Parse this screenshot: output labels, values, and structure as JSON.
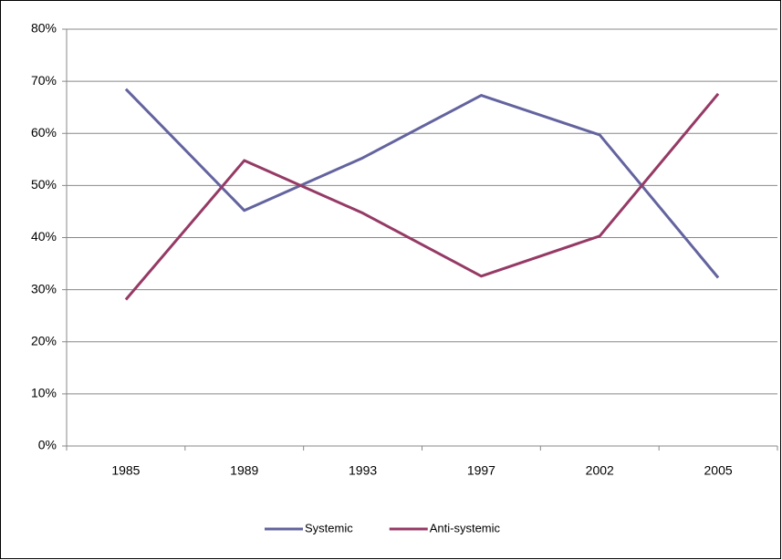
{
  "chart_data": {
    "type": "line",
    "categories": [
      "1985",
      "1989",
      "1993",
      "1997",
      "2002",
      "2005"
    ],
    "series": [
      {
        "name": "Systemic",
        "color": "#63639f",
        "values": [
          68.5,
          45.2,
          55.3,
          67.3,
          59.7,
          32.3
        ]
      },
      {
        "name": "Anti-systemic",
        "color": "#953a65",
        "values": [
          28.1,
          54.8,
          44.7,
          32.6,
          40.3,
          67.6
        ]
      }
    ],
    "ylim": [
      0,
      80
    ],
    "yticks": [
      {
        "value": 0,
        "label": "0%"
      },
      {
        "value": 10,
        "label": "10%"
      },
      {
        "value": 20,
        "label": "20%"
      },
      {
        "value": 30,
        "label": "30%"
      },
      {
        "value": 40,
        "label": "40%"
      },
      {
        "value": 50,
        "label": "50%"
      },
      {
        "value": 60,
        "label": "60%"
      },
      {
        "value": 70,
        "label": "70%"
      },
      {
        "value": 80,
        "label": "80%"
      }
    ],
    "grid": true,
    "legend": "bottom"
  }
}
